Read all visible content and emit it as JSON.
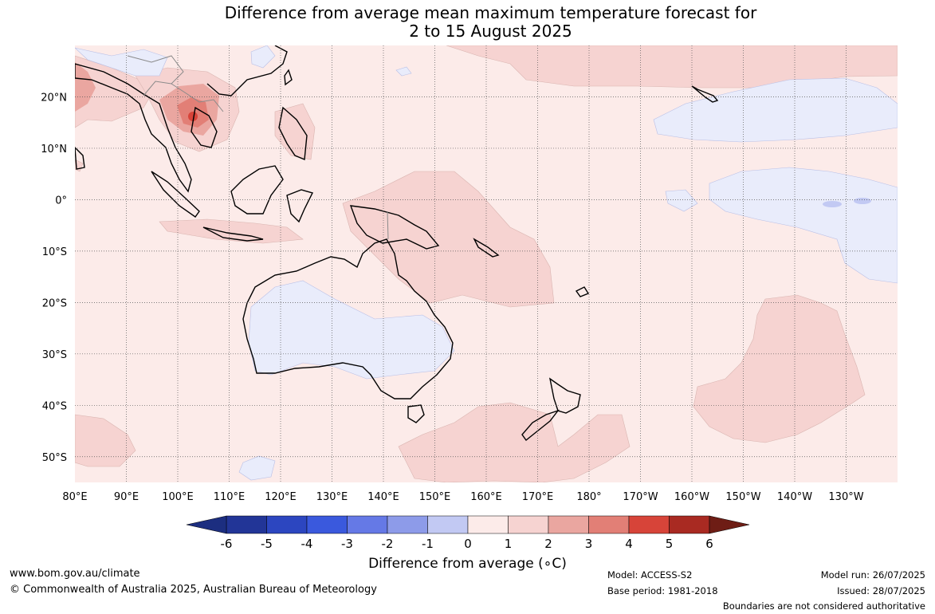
{
  "title": {
    "line1": "Difference from average mean maximum temperature forecast for",
    "line2": "2 to 15 August 2025"
  },
  "map": {
    "lon_ticks": [
      "80°E",
      "90°E",
      "100°E",
      "110°E",
      "120°E",
      "130°E",
      "140°E",
      "150°E",
      "160°E",
      "170°E",
      "180°",
      "170°W",
      "160°W",
      "150°W",
      "140°W",
      "130°W"
    ],
    "lat_ticks": [
      "20°N",
      "10°N",
      "0°",
      "10°S",
      "20°S",
      "30°S",
      "40°S",
      "50°S"
    ],
    "lon_range": [
      80,
      240
    ],
    "lat_range": [
      -55,
      30
    ],
    "background_color": "#fcebe9"
  },
  "colorbar": {
    "ticks": [
      "-6",
      "-5",
      "-4",
      "-3",
      "-2",
      "-1",
      "0",
      "1",
      "2",
      "3",
      "4",
      "5",
      "6"
    ],
    "colors": [
      "#223597",
      "#2c46c0",
      "#3a59dd",
      "#6579e6",
      "#8d9be9",
      "#c2c9f3",
      "#e9ecfb",
      "#fcebe9",
      "#f6d3d1",
      "#eaa6a0",
      "#e27f76",
      "#d74439",
      "#a92a22"
    ],
    "under_color": "#1c2e80",
    "over_color": "#6e1d15",
    "label": "Difference from average (∘C)"
  },
  "footer": {
    "website": "www.bom.gov.au/climate",
    "copyright": "© Commonwealth of Australia 2025, Australian Bureau of Meteorology",
    "model": "Model: ACCESS-S2",
    "base_period": "Base period: 1981-2018",
    "model_run": "Model run: 26/07/2025",
    "issued": "Issued: 28/07/2025",
    "disclaimer": "Boundaries are not considered authoritative"
  }
}
